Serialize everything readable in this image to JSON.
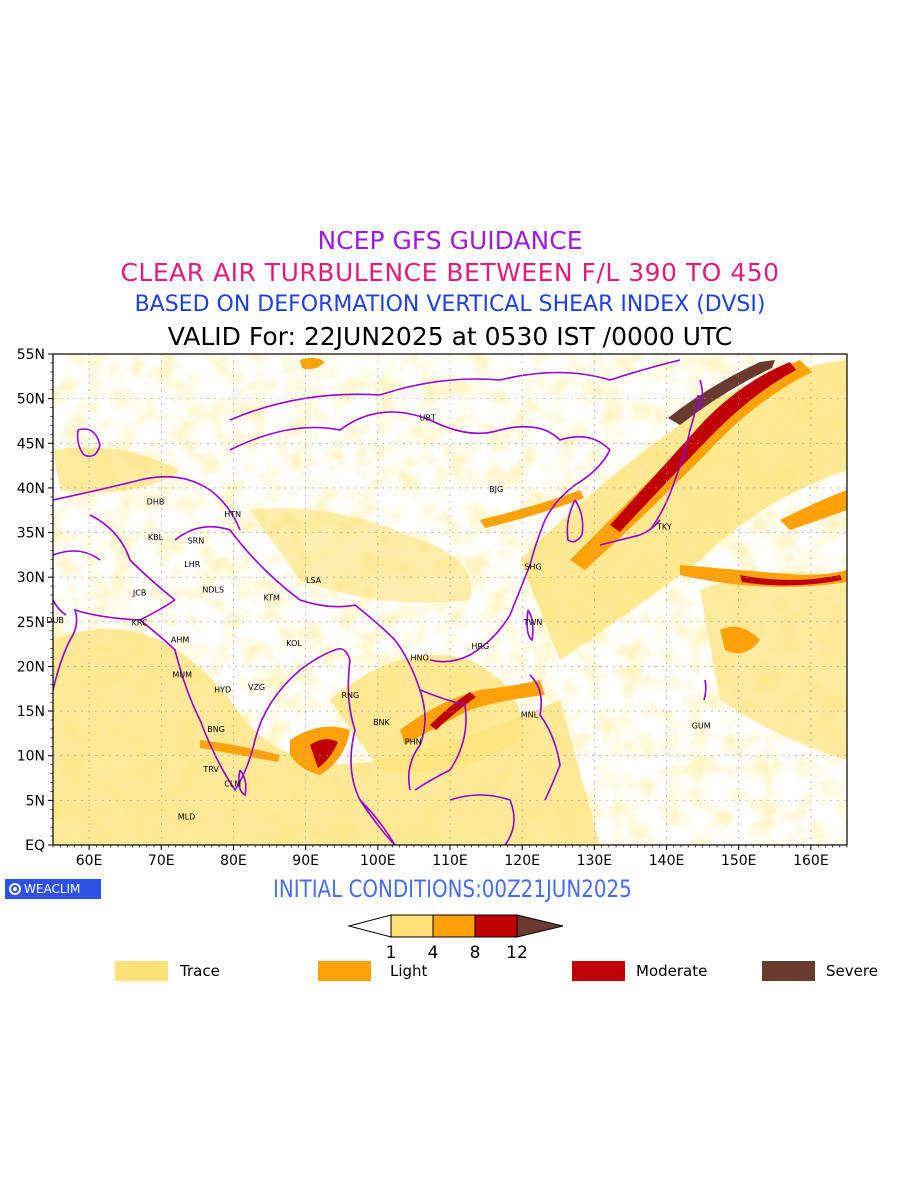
{
  "titles": {
    "line1": "NCEP GFS GUIDANCE",
    "line2": "CLEAR AIR TURBULENCE BETWEEN F/L 390 TO 450",
    "line3": "BASED ON DEFORMATION VERTICAL SHEAR INDEX (DVSI)",
    "line4": "VALID For: 22JUN2025 at 0530 IST /0000 UTC"
  },
  "colors": {
    "line1": "#9a1de0",
    "line2": "#e01e7a",
    "line3": "#2040e0",
    "line4": "#000000",
    "init": "#4a6cf0",
    "border": "#9400d3",
    "trace": "#ffe37a",
    "light": "#ffa20a",
    "moderate": "#c00000",
    "severe": "#6b3a2e"
  },
  "map": {
    "lat_labels": [
      "55N",
      "50N",
      "45N",
      "40N",
      "35N",
      "30N",
      "25N",
      "20N",
      "15N",
      "10N",
      "5N",
      "EQ"
    ],
    "lon_labels": [
      "60E",
      "70E",
      "80E",
      "90E",
      "100E",
      "110E",
      "120E",
      "130E",
      "140E",
      "150E",
      "160E"
    ],
    "cities": [
      {
        "code": "UBT",
        "lon": 106.9,
        "lat": 47.9
      },
      {
        "code": "BJG",
        "lon": 116.4,
        "lat": 39.9
      },
      {
        "code": "DHB",
        "lon": 69.2,
        "lat": 38.5
      },
      {
        "code": "HTN",
        "lon": 79.9,
        "lat": 37.1
      },
      {
        "code": "KBL",
        "lon": 69.2,
        "lat": 34.5
      },
      {
        "code": "SRN",
        "lon": 74.8,
        "lat": 34.1
      },
      {
        "code": "TKY",
        "lon": 139.7,
        "lat": 35.7
      },
      {
        "code": "LHR",
        "lon": 74.3,
        "lat": 31.5
      },
      {
        "code": "SHG",
        "lon": 121.5,
        "lat": 31.2
      },
      {
        "code": "LSA",
        "lon": 91.1,
        "lat": 29.7
      },
      {
        "code": "JCB",
        "lon": 67.0,
        "lat": 28.3
      },
      {
        "code": "NDLS",
        "lon": 77.2,
        "lat": 28.6
      },
      {
        "code": "KTM",
        "lon": 85.3,
        "lat": 27.7
      },
      {
        "code": "DUB",
        "lon": 55.3,
        "lat": 25.2
      },
      {
        "code": "KRC",
        "lon": 67.0,
        "lat": 24.9
      },
      {
        "code": "TWN",
        "lon": 121.5,
        "lat": 25.0
      },
      {
        "code": "AHM",
        "lon": 72.6,
        "lat": 23.0
      },
      {
        "code": "KOL",
        "lon": 88.4,
        "lat": 22.6
      },
      {
        "code": "HRG",
        "lon": 114.2,
        "lat": 22.3
      },
      {
        "code": "HNO",
        "lon": 105.8,
        "lat": 21.0
      },
      {
        "code": "MUM",
        "lon": 72.9,
        "lat": 19.1
      },
      {
        "code": "HYD",
        "lon": 78.5,
        "lat": 17.4
      },
      {
        "code": "VZG",
        "lon": 83.2,
        "lat": 17.7
      },
      {
        "code": "RNG",
        "lon": 96.2,
        "lat": 16.8
      },
      {
        "code": "MNL",
        "lon": 121.0,
        "lat": 14.6
      },
      {
        "code": "BNK",
        "lon": 100.5,
        "lat": 13.8
      },
      {
        "code": "GUM",
        "lon": 144.8,
        "lat": 13.4
      },
      {
        "code": "BNG",
        "lon": 77.6,
        "lat": 13.0
      },
      {
        "code": "PHN",
        "lon": 104.9,
        "lat": 11.6
      },
      {
        "code": "TRV",
        "lon": 76.9,
        "lat": 8.5
      },
      {
        "code": "CLM",
        "lon": 79.9,
        "lat": 6.9
      },
      {
        "code": "MLD",
        "lon": 73.5,
        "lat": 3.2
      }
    ]
  },
  "colorbar": {
    "levels": [
      "1",
      "4",
      "8",
      "12"
    ]
  },
  "legend": [
    {
      "label": "Trace",
      "color": "#ffe37a"
    },
    {
      "label": "Light",
      "color": "#ffa20a"
    },
    {
      "label": "Moderate",
      "color": "#c00000"
    },
    {
      "label": "Severe",
      "color": "#6b3a2e"
    }
  ],
  "footer": {
    "logo_text": "WEACLIM",
    "initial_conditions": "INITIAL CONDITIONS:00Z21JUN2025"
  }
}
